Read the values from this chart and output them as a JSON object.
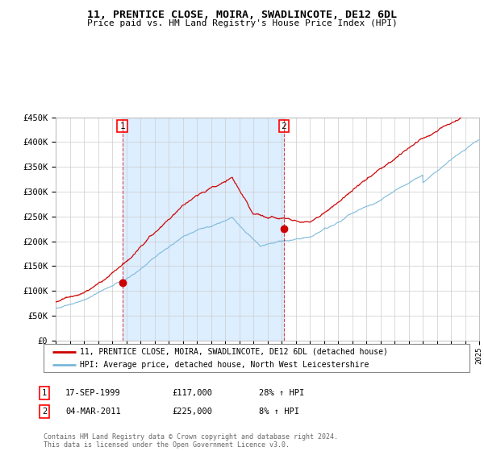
{
  "title": "11, PRENTICE CLOSE, MOIRA, SWADLINCOTE, DE12 6DL",
  "subtitle": "Price paid vs. HM Land Registry's House Price Index (HPI)",
  "legend_line1": "11, PRENTICE CLOSE, MOIRA, SWADLINCOTE, DE12 6DL (detached house)",
  "legend_line2": "HPI: Average price, detached house, North West Leicestershire",
  "annotation1_label": "1",
  "annotation1_date": "17-SEP-1999",
  "annotation1_price": "£117,000",
  "annotation1_hpi": "28% ↑ HPI",
  "annotation2_label": "2",
  "annotation2_date": "04-MAR-2011",
  "annotation2_price": "£225,000",
  "annotation2_hpi": "8% ↑ HPI",
  "footer": "Contains HM Land Registry data © Crown copyright and database right 2024.\nThis data is licensed under the Open Government Licence v3.0.",
  "hpi_color": "#7ab8d9",
  "price_color": "#cc0000",
  "shade_color": "#ddeeff",
  "annotation_color": "#cc0000",
  "background_color": "#ffffff",
  "grid_color": "#cccccc",
  "ylim": [
    0,
    450000
  ],
  "yticks": [
    0,
    50000,
    100000,
    150000,
    200000,
    250000,
    300000,
    350000,
    400000,
    450000
  ],
  "sale1_year": 1999.72,
  "sale1_price": 117000,
  "sale2_year": 2011.17,
  "sale2_price": 225000,
  "xmin": 1995,
  "xmax": 2025
}
